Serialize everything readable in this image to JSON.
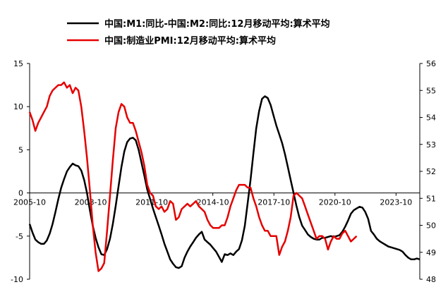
{
  "chart_data": {
    "type": "line",
    "legend_position": "top",
    "grid": false,
    "x_tick_labels": [
      "2005-10",
      "2008-10",
      "2011-10",
      "2014-10",
      "2017-10",
      "2020-10",
      "2023-10"
    ],
    "x_tick_months": [
      0,
      36,
      72,
      108,
      144,
      180,
      216
    ],
    "x_range_months": [
      0,
      230
    ],
    "left_axis": {
      "ylim": [
        -10,
        15
      ],
      "ticks": [
        -10,
        -5,
        0,
        5,
        10,
        15
      ]
    },
    "right_axis": {
      "ylim": [
        48,
        56
      ],
      "ticks": [
        48,
        49,
        50,
        51,
        52,
        53,
        54,
        55,
        56
      ]
    },
    "series": [
      {
        "name": "中国:M1:同比-中国:M2:同比:12月移动平均:算术平均",
        "color": "#000000",
        "axis": "left",
        "points": [
          [
            0,
            -3.6
          ],
          [
            1,
            -4.6
          ],
          [
            2,
            -5.4
          ],
          [
            3,
            -5.7
          ],
          [
            4,
            -5.9
          ],
          [
            5,
            -5.9
          ],
          [
            6,
            -5.5
          ],
          [
            7,
            -4.7
          ],
          [
            8,
            -3.6
          ],
          [
            9,
            -2.2
          ],
          [
            10,
            -0.7
          ],
          [
            11,
            0.6
          ],
          [
            12,
            1.6
          ],
          [
            13,
            2.5
          ],
          [
            14,
            3.0
          ],
          [
            15,
            3.4
          ],
          [
            16,
            3.2
          ],
          [
            17,
            3.1
          ],
          [
            18,
            2.6
          ],
          [
            19,
            1.5
          ],
          [
            20,
            0.0
          ],
          [
            21,
            -2.0
          ],
          [
            22,
            -3.8
          ],
          [
            23,
            -5.2
          ],
          [
            24,
            -6.3
          ],
          [
            25,
            -7.1
          ],
          [
            26,
            -7.2
          ],
          [
            27,
            -6.5
          ],
          [
            28,
            -5.3
          ],
          [
            29,
            -3.6
          ],
          [
            30,
            -1.5
          ],
          [
            31,
            0.8
          ],
          [
            32,
            3.0
          ],
          [
            33,
            4.8
          ],
          [
            34,
            5.9
          ],
          [
            35,
            6.3
          ],
          [
            36,
            6.4
          ],
          [
            37,
            6.1
          ],
          [
            38,
            5.0
          ],
          [
            39,
            3.5
          ],
          [
            40,
            2.0
          ],
          [
            41,
            0.4
          ],
          [
            42,
            -0.7
          ],
          [
            43,
            -1.8
          ],
          [
            44,
            -2.8
          ],
          [
            45,
            -3.8
          ],
          [
            46,
            -4.8
          ],
          [
            47,
            -5.9
          ],
          [
            48,
            -6.8
          ],
          [
            49,
            -7.7
          ],
          [
            50,
            -8.2
          ],
          [
            51,
            -8.6
          ],
          [
            52,
            -8.7
          ],
          [
            53,
            -8.5
          ],
          [
            54,
            -7.5
          ],
          [
            55,
            -6.8
          ],
          [
            56,
            -6.2
          ],
          [
            57,
            -5.7
          ],
          [
            58,
            -5.2
          ],
          [
            59,
            -4.8
          ],
          [
            60,
            -4.5
          ],
          [
            61,
            -5.4
          ],
          [
            62,
            -5.7
          ],
          [
            63,
            -6.0
          ],
          [
            64,
            -6.4
          ],
          [
            65,
            -6.8
          ],
          [
            66,
            -7.4
          ],
          [
            67,
            -8.0
          ],
          [
            68,
            -7.1
          ],
          [
            69,
            -7.2
          ],
          [
            70,
            -7.0
          ],
          [
            71,
            -7.2
          ],
          [
            72,
            -6.8
          ],
          [
            73,
            -6.5
          ],
          [
            74,
            -5.5
          ],
          [
            75,
            -3.8
          ],
          [
            76,
            -1.2
          ],
          [
            77,
            1.5
          ],
          [
            78,
            4.6
          ],
          [
            79,
            7.5
          ],
          [
            80,
            9.5
          ],
          [
            81,
            10.9
          ],
          [
            82,
            11.2
          ],
          [
            83,
            11.0
          ],
          [
            84,
            10.2
          ],
          [
            85,
            9.0
          ],
          [
            86,
            7.8
          ],
          [
            87,
            6.8
          ],
          [
            88,
            5.8
          ],
          [
            89,
            4.5
          ],
          [
            90,
            3.0
          ],
          [
            91,
            1.5
          ],
          [
            92,
            0.0
          ],
          [
            93,
            -1.5
          ],
          [
            94,
            -2.8
          ],
          [
            95,
            -3.8
          ],
          [
            96,
            -4.3
          ],
          [
            97,
            -4.8
          ],
          [
            98,
            -5.1
          ],
          [
            99,
            -5.3
          ],
          [
            100,
            -5.4
          ],
          [
            101,
            -5.4
          ],
          [
            102,
            -5.2
          ],
          [
            103,
            -5.2
          ],
          [
            104,
            -5.1
          ],
          [
            105,
            -5.0
          ],
          [
            106,
            -5.1
          ],
          [
            107,
            -5.0
          ],
          [
            108,
            -4.9
          ],
          [
            109,
            -4.5
          ],
          [
            110,
            -3.9
          ],
          [
            111,
            -3.2
          ],
          [
            112,
            -2.4
          ],
          [
            113,
            -2.0
          ],
          [
            114,
            -1.8
          ],
          [
            115,
            -1.6
          ],
          [
            116,
            -1.7
          ],
          [
            117,
            -2.2
          ],
          [
            118,
            -3.0
          ],
          [
            119,
            -4.4
          ],
          [
            120,
            -4.8
          ],
          [
            121,
            -5.3
          ],
          [
            122,
            -5.6
          ],
          [
            123,
            -5.8
          ],
          [
            124,
            -6.0
          ],
          [
            125,
            -6.2
          ],
          [
            126,
            -6.3
          ],
          [
            127,
            -6.4
          ],
          [
            128,
            -6.5
          ],
          [
            129,
            -6.6
          ],
          [
            130,
            -6.8
          ],
          [
            131,
            -7.2
          ],
          [
            132,
            -7.5
          ],
          [
            133,
            -7.7
          ],
          [
            134,
            -7.7
          ],
          [
            135,
            -7.6
          ],
          [
            136,
            -7.7
          ]
        ]
      },
      {
        "name": "中国:制造业PMI:12月移动平均:算术平均",
        "color": "#e60000",
        "axis": "right",
        "points": [
          [
            0,
            54.2
          ],
          [
            1,
            53.9
          ],
          [
            2,
            53.5
          ],
          [
            3,
            53.8
          ],
          [
            4,
            54.0
          ],
          [
            5,
            54.2
          ],
          [
            6,
            54.4
          ],
          [
            7,
            54.8
          ],
          [
            8,
            55.0
          ],
          [
            9,
            55.1
          ],
          [
            10,
            55.2
          ],
          [
            11,
            55.2
          ],
          [
            12,
            55.3
          ],
          [
            13,
            55.1
          ],
          [
            14,
            55.2
          ],
          [
            15,
            54.9
          ],
          [
            16,
            55.1
          ],
          [
            17,
            55.0
          ],
          [
            18,
            54.4
          ],
          [
            19,
            53.5
          ],
          [
            20,
            52.5
          ],
          [
            21,
            51.3
          ],
          [
            22,
            50.0
          ],
          [
            23,
            49.0
          ],
          [
            24,
            48.3
          ],
          [
            25,
            48.4
          ],
          [
            26,
            48.6
          ],
          [
            27,
            49.8
          ],
          [
            28,
            51.1
          ],
          [
            29,
            52.4
          ],
          [
            30,
            53.6
          ],
          [
            31,
            54.2
          ],
          [
            32,
            54.5
          ],
          [
            33,
            54.4
          ],
          [
            34,
            54.0
          ],
          [
            35,
            53.8
          ],
          [
            36,
            53.8
          ],
          [
            37,
            53.5
          ],
          [
            38,
            53.1
          ],
          [
            39,
            52.7
          ],
          [
            40,
            52.2
          ],
          [
            41,
            51.5
          ],
          [
            42,
            51.2
          ],
          [
            43,
            51.1
          ],
          [
            44,
            50.7
          ],
          [
            45,
            50.6
          ],
          [
            46,
            50.7
          ],
          [
            47,
            50.5
          ],
          [
            48,
            50.6
          ],
          [
            49,
            50.9
          ],
          [
            50,
            50.8
          ],
          [
            51,
            50.2
          ],
          [
            52,
            50.3
          ],
          [
            53,
            50.6
          ],
          [
            54,
            50.7
          ],
          [
            55,
            50.8
          ],
          [
            56,
            50.7
          ],
          [
            57,
            50.8
          ],
          [
            58,
            50.9
          ],
          [
            59,
            50.7
          ],
          [
            60,
            50.6
          ],
          [
            61,
            50.5
          ],
          [
            62,
            50.2
          ],
          [
            63,
            50.0
          ],
          [
            64,
            49.9
          ],
          [
            65,
            49.9
          ],
          [
            66,
            49.9
          ],
          [
            67,
            50.0
          ],
          [
            68,
            50.0
          ],
          [
            69,
            50.3
          ],
          [
            70,
            50.7
          ],
          [
            71,
            51.0
          ],
          [
            72,
            51.3
          ],
          [
            73,
            51.5
          ],
          [
            74,
            51.5
          ],
          [
            75,
            51.5
          ],
          [
            76,
            51.4
          ],
          [
            77,
            51.4
          ],
          [
            78,
            51.0
          ],
          [
            79,
            50.7
          ],
          [
            80,
            50.3
          ],
          [
            81,
            50.0
          ],
          [
            82,
            49.8
          ],
          [
            83,
            49.8
          ],
          [
            84,
            49.6
          ],
          [
            85,
            49.6
          ],
          [
            86,
            49.6
          ],
          [
            87,
            48.9
          ],
          [
            88,
            49.2
          ],
          [
            89,
            49.4
          ],
          [
            90,
            49.8
          ],
          [
            91,
            50.3
          ],
          [
            92,
            51.1
          ],
          [
            93,
            51.2
          ],
          [
            94,
            51.1
          ],
          [
            95,
            51.0
          ],
          [
            96,
            50.7
          ],
          [
            97,
            50.4
          ],
          [
            98,
            50.1
          ],
          [
            99,
            49.8
          ],
          [
            100,
            49.5
          ],
          [
            101,
            49.6
          ],
          [
            102,
            49.6
          ],
          [
            103,
            49.5
          ],
          [
            104,
            49.1
          ],
          [
            105,
            49.4
          ],
          [
            106,
            49.6
          ],
          [
            107,
            49.5
          ],
          [
            108,
            49.5
          ],
          [
            109,
            49.7
          ],
          [
            110,
            49.8
          ],
          [
            111,
            49.6
          ],
          [
            112,
            49.4
          ],
          [
            113,
            49.5
          ],
          [
            114,
            49.6
          ]
        ]
      }
    ]
  }
}
